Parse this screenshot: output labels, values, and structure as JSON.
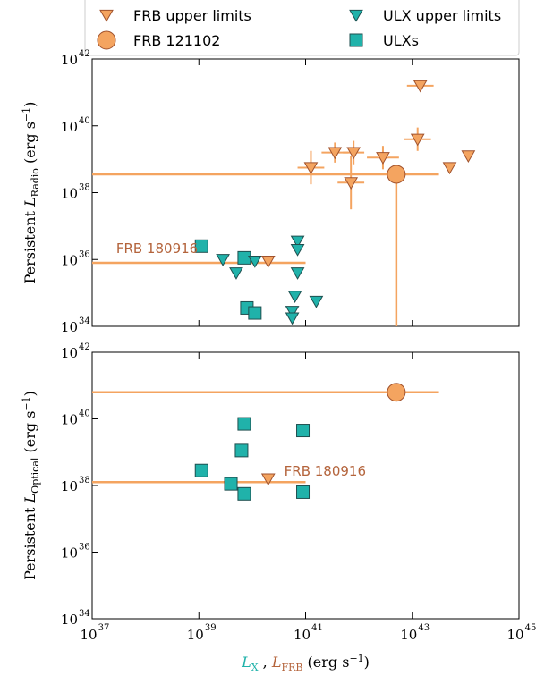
{
  "colors": {
    "frb": "#f4a460",
    "frb_edge": "#a0522d",
    "ulx": "#20b2aa",
    "ulx_edge": "#1f4f4f",
    "bar": "#f4a460",
    "annotation": "#b4643c",
    "xlabel": "#20b2aa"
  },
  "legend": {
    "location": "top",
    "entries": [
      {
        "label": "FRB upper limits",
        "marker": "triangle-down",
        "color": "frb"
      },
      {
        "label": "ULX upper limits",
        "marker": "triangle-down",
        "color": "ulx"
      },
      {
        "label": "FRB 121102",
        "marker": "circle",
        "color": "frb"
      },
      {
        "label": "ULXs",
        "marker": "square",
        "color": "ulx"
      }
    ]
  },
  "chart_data": [
    {
      "type": "scatter",
      "name": "radio",
      "ylabel_prefix": "Persistent ",
      "ylabel_symbol": "L",
      "ylabel_sub": "Radio",
      "ylabel_units": " (erg s",
      "ylabel_exp": "−1",
      "ylabel_close": ")",
      "xscale": "log",
      "yscale": "log",
      "xlim_log": [
        37,
        45
      ],
      "ylim_log": [
        34,
        42
      ],
      "xticks_log": [
        37,
        39,
        41,
        43,
        45
      ],
      "yticks_log": [
        34,
        36,
        38,
        40,
        42
      ],
      "show_xticklabels": false,
      "grid": false,
      "annotation": {
        "text": "FRB 180916",
        "x_log": 37.45,
        "y_log": 36.2
      },
      "frb_upper_limits": [
        {
          "x_log": 41.1,
          "y_log": 38.75,
          "xerr": 0.25,
          "yerr": 0.5
        },
        {
          "x_log": 41.55,
          "y_log": 39.2,
          "xerr": 0.25,
          "yerr": 0.3
        },
        {
          "x_log": 41.9,
          "y_log": 39.2,
          "xerr": 0.2,
          "yerr": 0.35
        },
        {
          "x_log": 41.85,
          "y_log": 38.3,
          "xerr": 0.25,
          "yerr": 0.8
        },
        {
          "x_log": 42.45,
          "y_log": 39.05,
          "xerr": 0.3,
          "yerr": 0.35
        },
        {
          "x_log": 43.1,
          "y_log": 39.6,
          "xerr": 0.25,
          "yerr": 0.35
        },
        {
          "x_log": 43.15,
          "y_log": 41.2,
          "xerr": 0.25,
          "yerr": 0.0
        },
        {
          "x_log": 43.7,
          "y_log": 38.75,
          "xerr": 0,
          "yerr": 0
        },
        {
          "x_log": 44.05,
          "y_log": 39.1,
          "xerr": 0,
          "yerr": 0
        },
        {
          "x_log": 40.3,
          "y_log": 35.95,
          "xerr": 0,
          "yerr": 0
        }
      ],
      "frb_121102": {
        "x_log": 42.7,
        "y_log": 38.55,
        "xerr_low": 5.7,
        "xerr_high": 0.8,
        "yerr_low": 4.55,
        "yerr_high": 0
      },
      "frb_180916_line": {
        "x_from_log": 37,
        "x_to_log": 41.0,
        "y_log": 35.9
      },
      "ulx_upper_limits": [
        {
          "x_log": 39.45,
          "y_log": 36.0
        },
        {
          "x_log": 39.7,
          "y_log": 35.6
        },
        {
          "x_log": 40.05,
          "y_log": 35.95
        },
        {
          "x_log": 40.85,
          "y_log": 36.55
        },
        {
          "x_log": 40.85,
          "y_log": 36.3
        },
        {
          "x_log": 40.85,
          "y_log": 35.6
        },
        {
          "x_log": 40.8,
          "y_log": 34.9
        },
        {
          "x_log": 40.75,
          "y_log": 34.45
        },
        {
          "x_log": 40.75,
          "y_log": 34.25
        },
        {
          "x_log": 41.2,
          "y_log": 34.75
        }
      ],
      "ulxs": [
        {
          "x_log": 39.05,
          "y_log": 36.4
        },
        {
          "x_log": 39.85,
          "y_log": 36.05
        },
        {
          "x_log": 39.9,
          "y_log": 34.55
        },
        {
          "x_log": 40.05,
          "y_log": 34.4
        }
      ]
    },
    {
      "type": "scatter",
      "name": "optical",
      "ylabel_prefix": "Persistent ",
      "ylabel_symbol": "L",
      "ylabel_sub": "Optical",
      "ylabel_units": " (erg s",
      "ylabel_exp": "−1",
      "ylabel_close": ")",
      "xlabel_sym1": "L",
      "xlabel_sub1": "X",
      "xlabel_sep": " , ",
      "xlabel_sym2": "L",
      "xlabel_sub2": "FRB",
      "xlabel_units": " (erg s",
      "xlabel_exp": "−1",
      "xlabel_close": ")",
      "xscale": "log",
      "yscale": "log",
      "xlim_log": [
        37,
        45
      ],
      "ylim_log": [
        34,
        42
      ],
      "xticks_log": [
        37,
        39,
        41,
        43,
        45
      ],
      "yticks_log": [
        34,
        36,
        38,
        40,
        42
      ],
      "show_xticklabels": true,
      "grid": false,
      "annotation": {
        "text": "FRB 180916",
        "x_log": 40.6,
        "y_log": 38.3
      },
      "frb_upper_limits": [
        {
          "x_log": 40.3,
          "y_log": 38.2,
          "xerr": 0,
          "yerr": 0
        }
      ],
      "frb_121102": {
        "x_log": 42.7,
        "y_log": 40.8,
        "xerr_low": 5.7,
        "xerr_high": 0.8,
        "yerr_low": 0,
        "yerr_high": 0
      },
      "frb_180916_line": {
        "x_from_log": 37,
        "x_to_log": 41.0,
        "y_log": 38.1
      },
      "ulx_upper_limits": [],
      "ulxs": [
        {
          "x_log": 39.05,
          "y_log": 38.45
        },
        {
          "x_log": 39.85,
          "y_log": 39.85
        },
        {
          "x_log": 39.8,
          "y_log": 39.05
        },
        {
          "x_log": 39.6,
          "y_log": 38.05
        },
        {
          "x_log": 39.85,
          "y_log": 37.75
        },
        {
          "x_log": 40.95,
          "y_log": 39.65
        },
        {
          "x_log": 40.95,
          "y_log": 37.8
        }
      ]
    }
  ]
}
